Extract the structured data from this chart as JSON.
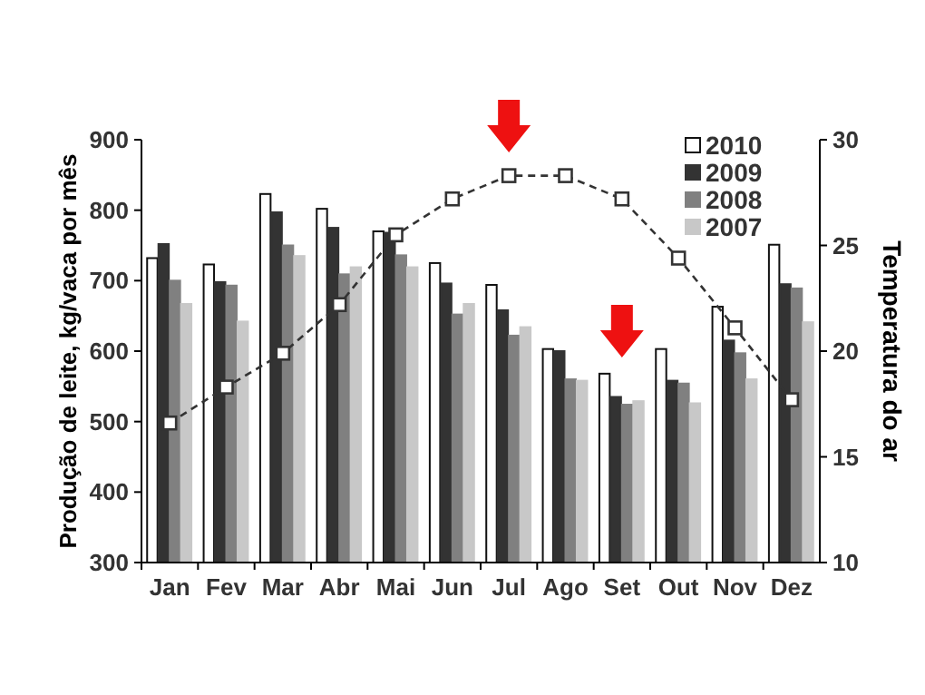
{
  "chart_data": {
    "type": "bar",
    "ylabel": "Produção de leite, kg/vaca por mês",
    "y2label": "Temperatura do ar",
    "categories": [
      "Jan",
      "Fev",
      "Mar",
      "Abr",
      "Mai",
      "Jun",
      "Jul",
      "Ago",
      "Set",
      "Out",
      "Nov",
      "Dez"
    ],
    "series": [
      {
        "name": "2010",
        "color": "#ffffff",
        "values": [
          732,
          723,
          823,
          802,
          770,
          725,
          694,
          603,
          568,
          603,
          663,
          751
        ]
      },
      {
        "name": "2009",
        "color": "#333333",
        "values": [
          752,
          698,
          797,
          775,
          768,
          696,
          658,
          600,
          535,
          558,
          615,
          695
        ]
      },
      {
        "name": "2008",
        "color": "#808080",
        "values": [
          700,
          693,
          750,
          709,
          736,
          652,
          622,
          560,
          524,
          554,
          597,
          689
        ]
      },
      {
        "name": "2007",
        "color": "#c8c8c8",
        "values": [
          667,
          642,
          735,
          719,
          719,
          667,
          634,
          558,
          529,
          526,
          560,
          641
        ]
      },
      {
        "type": "line",
        "axis": "y2",
        "color": "#333333",
        "marker": "square",
        "line_style": "dashed",
        "values": [
          16.6,
          18.3,
          19.9,
          22.2,
          25.5,
          27.2,
          28.3,
          28.3,
          27.2,
          24.4,
          21.1,
          17.7
        ]
      }
    ],
    "ylim": [
      300,
      900
    ],
    "yticks": [
      300,
      400,
      500,
      600,
      700,
      800,
      900
    ],
    "y2lim": [
      10,
      30
    ],
    "y2ticks": [
      10,
      15,
      20,
      25,
      30
    ],
    "legend": "top right",
    "grid": false
  }
}
